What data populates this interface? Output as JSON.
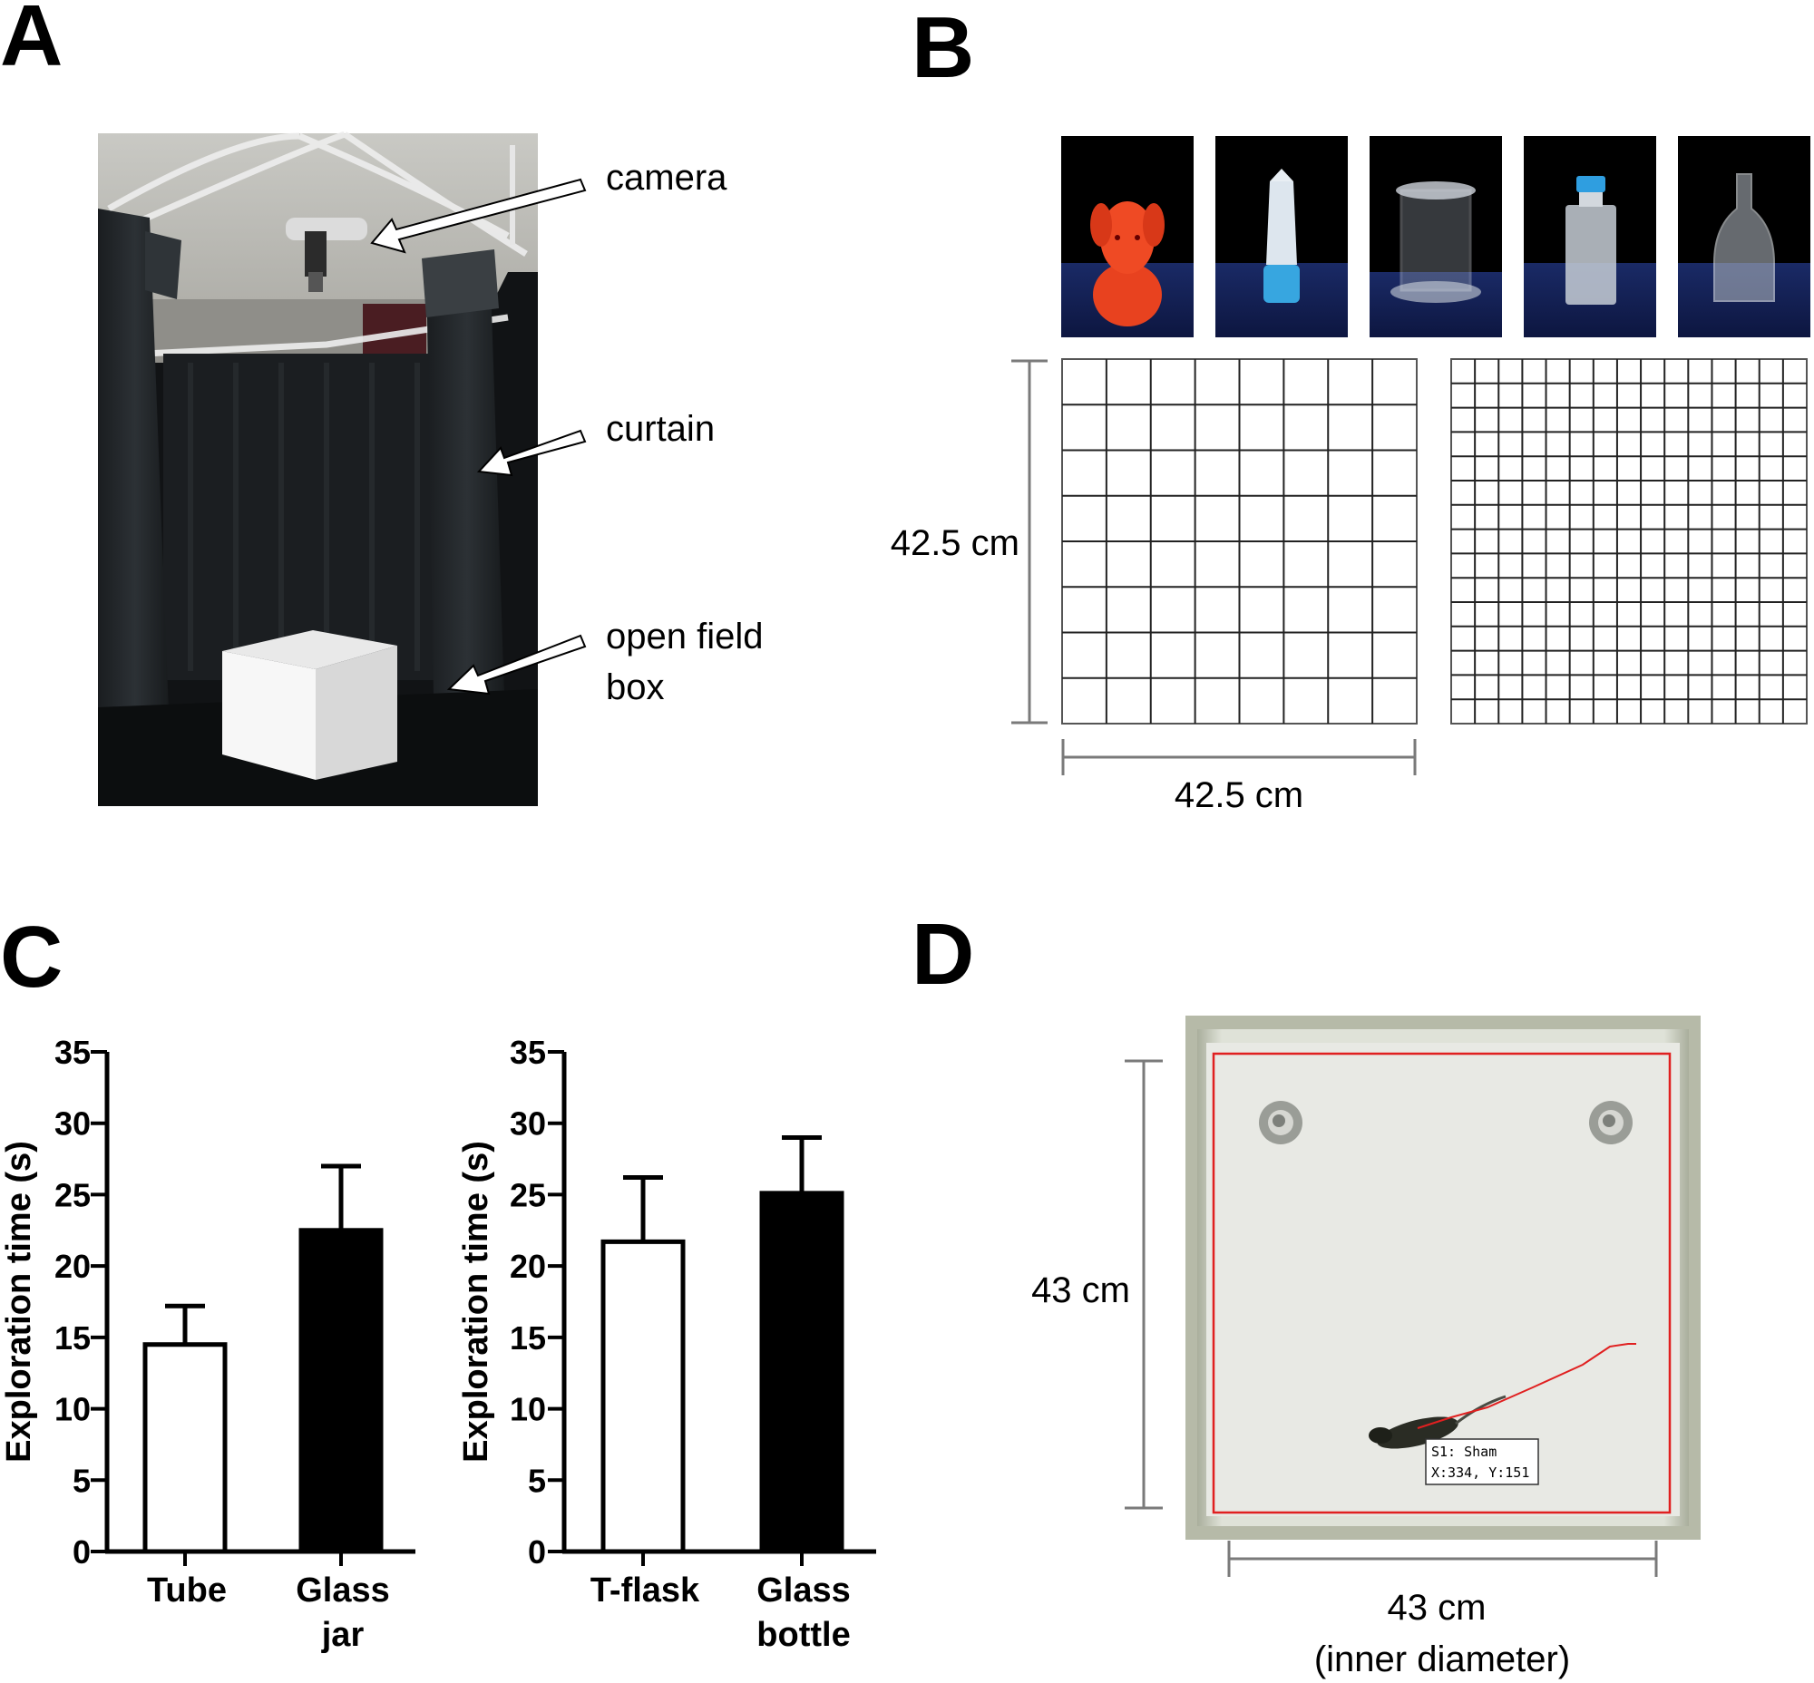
{
  "panels": {
    "a": {
      "letter": "A",
      "annotations": [
        {
          "id": "camera",
          "lines": [
            "camera"
          ]
        },
        {
          "id": "curtain",
          "lines": [
            "curtain"
          ]
        },
        {
          "id": "box",
          "lines": [
            "open field",
            "box"
          ]
        }
      ]
    },
    "b": {
      "letter": "B",
      "dim_vertical": "42.5 cm",
      "dim_horizontal": "42.5 cm",
      "objects": [
        "red-figurine",
        "conical-tube",
        "glass-jar",
        "t-flask",
        "glass-bottle"
      ]
    },
    "c": {
      "letter": "C"
    },
    "d": {
      "letter": "D",
      "dim_vertical": "43 cm",
      "dim_horizontal_lines": [
        "43 cm",
        "(inner diameter)"
      ],
      "tracker_label_lines": [
        "S1: Sham",
        "X:334, Y:151"
      ],
      "colors": {
        "tracking": "#e02020"
      }
    }
  },
  "chart_data": [
    {
      "type": "bar",
      "ylabel": "Exploration time (s)",
      "categories": [
        [
          "Tube"
        ],
        [
          "Glass",
          "jar"
        ]
      ],
      "values": [
        14.5,
        22.5
      ],
      "error": [
        2.7,
        4.5
      ],
      "fills": [
        "#ffffff",
        "#000000"
      ],
      "ylim": [
        0,
        35
      ],
      "yticks": [
        0,
        5,
        10,
        15,
        20,
        25,
        30,
        35
      ]
    },
    {
      "type": "bar",
      "ylabel": "Exploration time (s)",
      "categories": [
        [
          "T-flask"
        ],
        [
          "Glass",
          "bottle"
        ]
      ],
      "values": [
        21.7,
        25.1
      ],
      "error": [
        4.5,
        3.9
      ],
      "fills": [
        "#ffffff",
        "#000000"
      ],
      "ylim": [
        0,
        35
      ],
      "yticks": [
        0,
        5,
        10,
        15,
        20,
        25,
        30,
        35
      ]
    }
  ]
}
